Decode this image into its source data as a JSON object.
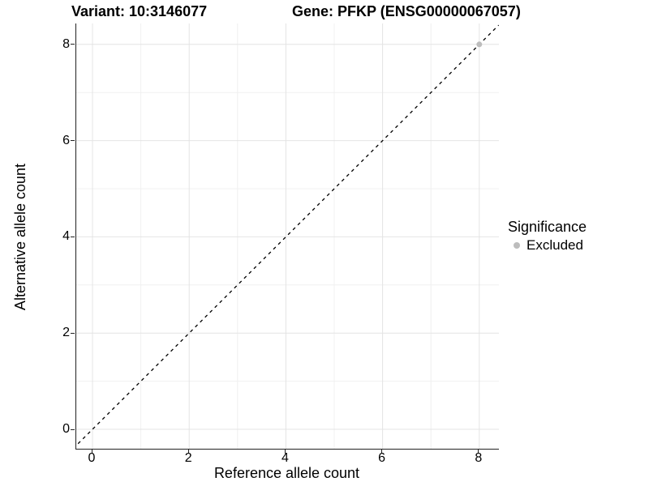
{
  "titles": {
    "variant": "Variant: 10:3146077",
    "gene": "Gene: PFKP (ENSG00000067057)"
  },
  "axes": {
    "x": {
      "label": "Reference allele count"
    },
    "y": {
      "label": "Alternative allele count"
    }
  },
  "legend": {
    "title": "Significance",
    "items": [
      {
        "label": "Excluded",
        "color": "#bdbdbd"
      }
    ]
  },
  "colors": {
    "background": "#ffffff",
    "axis_line": "#222222",
    "major_grid": "#e4e4e4",
    "minor_grid": "#f0f0f0",
    "reference_line": "#000000",
    "excluded_point": "#bdbdbd",
    "text": "#000000"
  },
  "chart_data": {
    "type": "scatter",
    "title_left": "Variant: 10:3146077",
    "title_right": "Gene: PFKP (ENSG00000067057)",
    "xlabel": "Reference allele count",
    "ylabel": "Alternative allele count",
    "xlim": [
      -0.4,
      8.4
    ],
    "ylim": [
      -0.4,
      8.4
    ],
    "x_major_ticks": [
      0,
      2,
      4,
      6,
      8
    ],
    "y_major_ticks": [
      0,
      2,
      4,
      6,
      8
    ],
    "x_minor_ticks": [
      1,
      3,
      5,
      7
    ],
    "y_minor_ticks": [
      1,
      3,
      5,
      7
    ],
    "grid": "on",
    "legend_position": "right",
    "series": [
      {
        "name": "Excluded",
        "color": "#bdbdbd",
        "points": [
          [
            8,
            8
          ]
        ]
      }
    ],
    "reference_line": {
      "kind": "identity y=x",
      "style": "dashed",
      "color": "#000000",
      "from": [
        -0.4,
        -0.4
      ],
      "to": [
        8.4,
        8.4
      ]
    }
  }
}
